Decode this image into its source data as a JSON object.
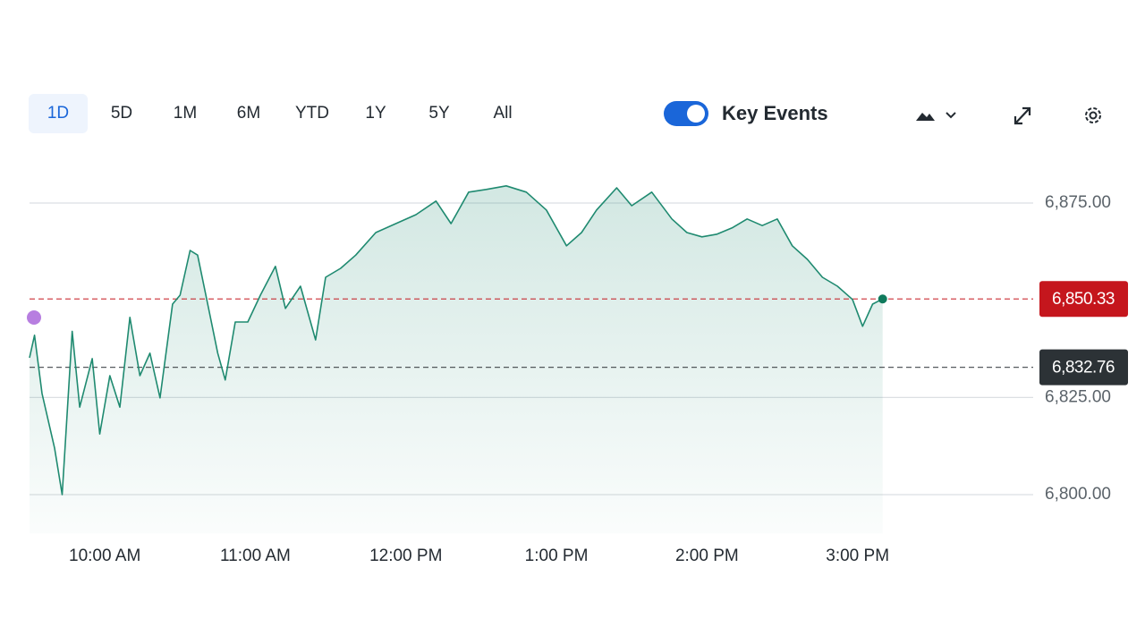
{
  "toolbar": {
    "ranges": [
      "1D",
      "5D",
      "1M",
      "6M",
      "YTD",
      "1Y",
      "5Y",
      "All"
    ],
    "toggle_label": "Key Events"
  },
  "chart_data": {
    "type": "line",
    "x": [
      570,
      572,
      575,
      580,
      583,
      587,
      590,
      595,
      598,
      602,
      606,
      610,
      614,
      618,
      622,
      627,
      630,
      634,
      637,
      641,
      645,
      648,
      652,
      657,
      662,
      668,
      672,
      678,
      684,
      688,
      694,
      700,
      708,
      716,
      724,
      732,
      738,
      745,
      752,
      760,
      768,
      776,
      784,
      790,
      796,
      804,
      810,
      818,
      826,
      832,
      838,
      844,
      850,
      856,
      862,
      868,
      874,
      880,
      886,
      892,
      898,
      902,
      906,
      910
    ],
    "values": [
      6835.2,
      6841,
      6826,
      6812,
      6800,
      6842,
      6822.5,
      6835,
      6815.6,
      6830.6,
      6822.5,
      6845.6,
      6830.6,
      6836.4,
      6824.9,
      6849,
      6851.3,
      6862.8,
      6861.6,
      6849,
      6836.4,
      6829.5,
      6844.4,
      6844.4,
      6851.3,
      6858.7,
      6847.9,
      6853.6,
      6839.8,
      6855.9,
      6858.2,
      6861.6,
      6867.4,
      6869.7,
      6872,
      6875.5,
      6869.7,
      6877.8,
      6878.5,
      6879.4,
      6877.8,
      6873.2,
      6864,
      6867.4,
      6873.2,
      6878.9,
      6874.3,
      6877.8,
      6870.9,
      6867.4,
      6866.3,
      6867,
      6868.6,
      6870.9,
      6869.2,
      6870.9,
      6864,
      6860.5,
      6855.9,
      6853.6,
      6850.2,
      6843.3,
      6849,
      6850.33
    ],
    "color": "#1f8a70",
    "xlim": [
      570,
      970
    ],
    "xticks": [
      {
        "value": 600,
        "label": "10:00 AM"
      },
      {
        "value": 660,
        "label": "11:00 AM"
      },
      {
        "value": 720,
        "label": "12:00 PM"
      },
      {
        "value": 780,
        "label": "1:00 PM"
      },
      {
        "value": 840,
        "label": "2:00 PM"
      },
      {
        "value": 900,
        "label": "3:00 PM"
      }
    ],
    "ylim": [
      6790,
      6885
    ],
    "yticks": [
      {
        "value": 6800,
        "label": "6,800.00"
      },
      {
        "value": 6825,
        "label": "6,825.00"
      },
      {
        "value": 6875,
        "label": "6,875.00"
      }
    ],
    "grid": true,
    "reference_lines": [
      {
        "value": 6850.33,
        "label": "6,850.33",
        "color": "#c5161d"
      },
      {
        "value": 6832.76,
        "label": "6,832.76",
        "color": "#2c3236"
      }
    ]
  }
}
